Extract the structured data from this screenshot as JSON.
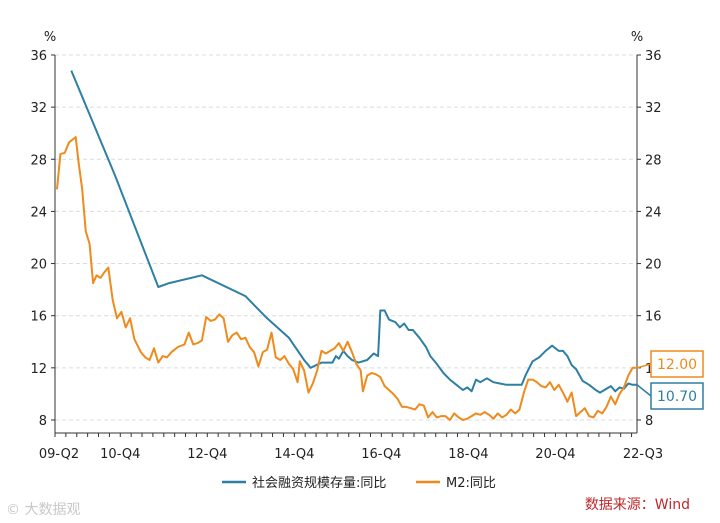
{
  "chart_data": {
    "type": "line",
    "y_unit_left": "%",
    "y_unit_right": "%",
    "ylim": [
      7,
      36
    ],
    "y_ticks": [
      8,
      12,
      16,
      20,
      24,
      28,
      32,
      36
    ],
    "x_ticks": [
      "09-Q2",
      "10-Q4",
      "12-Q4",
      "14-Q4",
      "16-Q4",
      "18-Q4",
      "20-Q4",
      "22-Q3"
    ],
    "x_range_years": [
      2009.375,
      2022.75
    ],
    "grid": true,
    "legend_placement": "bottom",
    "series": [
      {
        "name": "社会融资规模存量:同比",
        "color": "#2e7fa3",
        "end_label": "10.70",
        "points": [
          [
            2009.75,
            34.8
          ],
          [
            2010.75,
            26.8
          ],
          [
            2011.75,
            18.2
          ],
          [
            2012.0,
            18.5
          ],
          [
            2012.75,
            19.1
          ],
          [
            2013.75,
            17.5
          ],
          [
            2014.25,
            15.8
          ],
          [
            2014.75,
            14.3
          ],
          [
            2015.1,
            12.6
          ],
          [
            2015.25,
            12.0
          ],
          [
            2015.5,
            12.4
          ],
          [
            2015.75,
            12.4
          ],
          [
            2015.83,
            12.9
          ],
          [
            2015.9,
            12.7
          ],
          [
            2016.0,
            13.3
          ],
          [
            2016.1,
            12.9
          ],
          [
            2016.2,
            12.6
          ],
          [
            2016.35,
            12.4
          ],
          [
            2016.55,
            12.6
          ],
          [
            2016.7,
            13.1
          ],
          [
            2016.8,
            12.9
          ],
          [
            2016.85,
            16.4
          ],
          [
            2016.95,
            16.4
          ],
          [
            2017.05,
            15.7
          ],
          [
            2017.2,
            15.5
          ],
          [
            2017.3,
            15.1
          ],
          [
            2017.4,
            15.4
          ],
          [
            2017.5,
            14.9
          ],
          [
            2017.6,
            14.9
          ],
          [
            2017.75,
            14.3
          ],
          [
            2017.9,
            13.6
          ],
          [
            2018.0,
            12.9
          ],
          [
            2018.15,
            12.3
          ],
          [
            2018.3,
            11.6
          ],
          [
            2018.45,
            11.1
          ],
          [
            2018.6,
            10.7
          ],
          [
            2018.75,
            10.3
          ],
          [
            2018.85,
            10.5
          ],
          [
            2018.95,
            10.2
          ],
          [
            2019.05,
            11.1
          ],
          [
            2019.15,
            10.9
          ],
          [
            2019.3,
            11.2
          ],
          [
            2019.45,
            10.9
          ],
          [
            2019.6,
            10.8
          ],
          [
            2019.75,
            10.7
          ],
          [
            2019.9,
            10.7
          ],
          [
            2020.1,
            10.7
          ],
          [
            2020.2,
            11.5
          ],
          [
            2020.35,
            12.5
          ],
          [
            2020.5,
            12.8
          ],
          [
            2020.65,
            13.3
          ],
          [
            2020.8,
            13.7
          ],
          [
            2020.95,
            13.3
          ],
          [
            2021.05,
            13.3
          ],
          [
            2021.15,
            12.9
          ],
          [
            2021.25,
            12.2
          ],
          [
            2021.35,
            11.9
          ],
          [
            2021.5,
            11.0
          ],
          [
            2021.65,
            10.7
          ],
          [
            2021.8,
            10.3
          ],
          [
            2021.9,
            10.1
          ],
          [
            2022.0,
            10.3
          ],
          [
            2022.15,
            10.6
          ],
          [
            2022.25,
            10.2
          ],
          [
            2022.35,
            10.5
          ],
          [
            2022.45,
            10.4
          ],
          [
            2022.55,
            10.8
          ],
          [
            2022.65,
            10.7
          ],
          [
            2022.75,
            10.7
          ]
        ]
      },
      {
        "name": "M2:同比",
        "color": "#ef8a1c",
        "end_label": "12.00",
        "points": [
          [
            2009.42,
            25.7
          ],
          [
            2009.5,
            28.4
          ],
          [
            2009.6,
            28.5
          ],
          [
            2009.7,
            29.3
          ],
          [
            2009.85,
            29.7
          ],
          [
            2009.92,
            27.7
          ],
          [
            2010.0,
            25.7
          ],
          [
            2010.08,
            22.5
          ],
          [
            2010.17,
            21.5
          ],
          [
            2010.25,
            18.5
          ],
          [
            2010.33,
            19.1
          ],
          [
            2010.42,
            18.9
          ],
          [
            2010.5,
            19.3
          ],
          [
            2010.6,
            19.7
          ],
          [
            2010.7,
            17.2
          ],
          [
            2010.8,
            15.8
          ],
          [
            2010.9,
            16.3
          ],
          [
            2011.0,
            15.1
          ],
          [
            2011.1,
            15.8
          ],
          [
            2011.2,
            14.2
          ],
          [
            2011.35,
            13.2
          ],
          [
            2011.45,
            12.8
          ],
          [
            2011.55,
            12.6
          ],
          [
            2011.65,
            13.5
          ],
          [
            2011.75,
            12.4
          ],
          [
            2011.85,
            12.9
          ],
          [
            2011.95,
            12.8
          ],
          [
            2012.05,
            13.2
          ],
          [
            2012.2,
            13.6
          ],
          [
            2012.35,
            13.8
          ],
          [
            2012.45,
            14.7
          ],
          [
            2012.55,
            13.8
          ],
          [
            2012.65,
            13.9
          ],
          [
            2012.75,
            14.1
          ],
          [
            2012.85,
            15.9
          ],
          [
            2012.95,
            15.6
          ],
          [
            2013.05,
            15.7
          ],
          [
            2013.15,
            16.1
          ],
          [
            2013.25,
            15.8
          ],
          [
            2013.35,
            14.0
          ],
          [
            2013.45,
            14.5
          ],
          [
            2013.55,
            14.7
          ],
          [
            2013.65,
            14.2
          ],
          [
            2013.75,
            14.3
          ],
          [
            2013.85,
            13.6
          ],
          [
            2013.95,
            13.2
          ],
          [
            2014.05,
            12.1
          ],
          [
            2014.15,
            13.2
          ],
          [
            2014.25,
            13.4
          ],
          [
            2014.35,
            14.7
          ],
          [
            2014.45,
            12.8
          ],
          [
            2014.55,
            12.6
          ],
          [
            2014.65,
            12.9
          ],
          [
            2014.75,
            12.3
          ],
          [
            2014.85,
            11.9
          ],
          [
            2014.95,
            10.9
          ],
          [
            2015.0,
            12.5
          ],
          [
            2015.1,
            11.8
          ],
          [
            2015.2,
            10.1
          ],
          [
            2015.3,
            10.8
          ],
          [
            2015.4,
            11.8
          ],
          [
            2015.5,
            13.3
          ],
          [
            2015.6,
            13.1
          ],
          [
            2015.7,
            13.3
          ],
          [
            2015.8,
            13.5
          ],
          [
            2015.9,
            13.9
          ],
          [
            2016.0,
            13.3
          ],
          [
            2016.1,
            14.0
          ],
          [
            2016.2,
            13.2
          ],
          [
            2016.3,
            12.3
          ],
          [
            2016.4,
            11.8
          ],
          [
            2016.45,
            10.2
          ],
          [
            2016.55,
            11.4
          ],
          [
            2016.65,
            11.6
          ],
          [
            2016.75,
            11.5
          ],
          [
            2016.85,
            11.3
          ],
          [
            2016.95,
            10.6
          ],
          [
            2017.05,
            10.3
          ],
          [
            2017.15,
            10.0
          ],
          [
            2017.25,
            9.6
          ],
          [
            2017.35,
            9.0
          ],
          [
            2017.45,
            9.0
          ],
          [
            2017.55,
            8.9
          ],
          [
            2017.65,
            8.8
          ],
          [
            2017.75,
            9.2
          ],
          [
            2017.85,
            9.1
          ],
          [
            2017.95,
            8.2
          ],
          [
            2018.05,
            8.6
          ],
          [
            2018.15,
            8.2
          ],
          [
            2018.25,
            8.3
          ],
          [
            2018.35,
            8.3
          ],
          [
            2018.45,
            8.0
          ],
          [
            2018.55,
            8.5
          ],
          [
            2018.65,
            8.2
          ],
          [
            2018.75,
            8.0
          ],
          [
            2018.85,
            8.1
          ],
          [
            2018.95,
            8.3
          ],
          [
            2019.05,
            8.5
          ],
          [
            2019.15,
            8.4
          ],
          [
            2019.25,
            8.6
          ],
          [
            2019.35,
            8.4
          ],
          [
            2019.45,
            8.1
          ],
          [
            2019.55,
            8.5
          ],
          [
            2019.65,
            8.2
          ],
          [
            2019.75,
            8.4
          ],
          [
            2019.85,
            8.8
          ],
          [
            2019.95,
            8.5
          ],
          [
            2020.05,
            8.8
          ],
          [
            2020.15,
            10.1
          ],
          [
            2020.25,
            11.1
          ],
          [
            2020.35,
            11.1
          ],
          [
            2020.45,
            10.9
          ],
          [
            2020.55,
            10.6
          ],
          [
            2020.65,
            10.5
          ],
          [
            2020.75,
            10.9
          ],
          [
            2020.85,
            10.3
          ],
          [
            2020.95,
            10.7
          ],
          [
            2021.05,
            10.1
          ],
          [
            2021.15,
            9.4
          ],
          [
            2021.25,
            10.1
          ],
          [
            2021.35,
            8.3
          ],
          [
            2021.45,
            8.6
          ],
          [
            2021.55,
            8.9
          ],
          [
            2021.65,
            8.3
          ],
          [
            2021.75,
            8.2
          ],
          [
            2021.85,
            8.7
          ],
          [
            2021.95,
            8.5
          ],
          [
            2022.05,
            9.0
          ],
          [
            2022.15,
            9.8
          ],
          [
            2022.25,
            9.2
          ],
          [
            2022.35,
            10.0
          ],
          [
            2022.45,
            10.5
          ],
          [
            2022.55,
            11.4
          ],
          [
            2022.65,
            12.0
          ],
          [
            2022.75,
            12.0
          ]
        ]
      }
    ]
  },
  "source_text": "数据来源：Wind",
  "watermark_text": "© 大数据观"
}
